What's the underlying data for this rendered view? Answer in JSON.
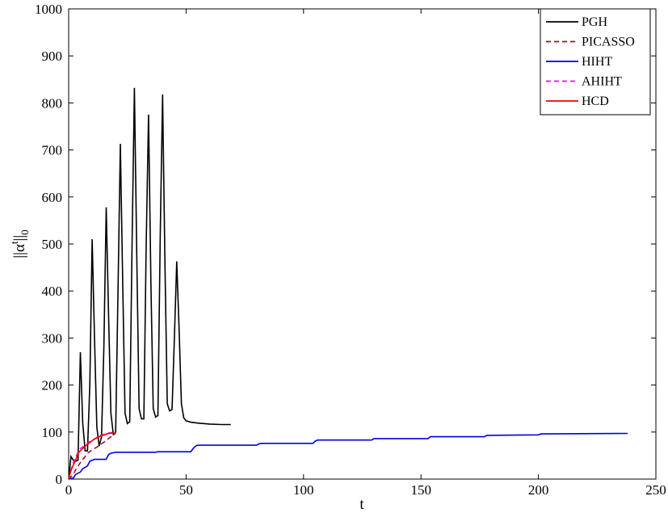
{
  "chart_data": {
    "type": "line",
    "xlabel": "t",
    "ylabel": "||α^t||_0",
    "ylabel_parts": {
      "main": "||α",
      "sup": "t",
      "bars": "||",
      "sub": "0"
    },
    "xlim": [
      0,
      250
    ],
    "ylim": [
      0,
      1000
    ],
    "xticks": [
      "0",
      "50",
      "100",
      "150",
      "200",
      "250"
    ],
    "yticks": [
      "0",
      "100",
      "200",
      "300",
      "400",
      "500",
      "600",
      "700",
      "800",
      "900",
      "1000"
    ],
    "grid": false,
    "legend_position": "top-right",
    "series": [
      {
        "name": "PGH",
        "color": "#000000",
        "dash": "solid",
        "points": [
          [
            0,
            0
          ],
          [
            1,
            48
          ],
          [
            2,
            40
          ],
          [
            3,
            38
          ],
          [
            4,
            40
          ],
          [
            5,
            270
          ],
          [
            6,
            120
          ],
          [
            7,
            60
          ],
          [
            8,
            60
          ],
          [
            9,
            200
          ],
          [
            10,
            510
          ],
          [
            11,
            300
          ],
          [
            12,
            110
          ],
          [
            13,
            70
          ],
          [
            14,
            90
          ],
          [
            15,
            280
          ],
          [
            16,
            578
          ],
          [
            17,
            350
          ],
          [
            18,
            140
          ],
          [
            19,
            95
          ],
          [
            20,
            100
          ],
          [
            21,
            400
          ],
          [
            22,
            713
          ],
          [
            23,
            420
          ],
          [
            24,
            140
          ],
          [
            25,
            118
          ],
          [
            26,
            122
          ],
          [
            27,
            500
          ],
          [
            28,
            832
          ],
          [
            29,
            480
          ],
          [
            30,
            150
          ],
          [
            31,
            128
          ],
          [
            32,
            128
          ],
          [
            33,
            500
          ],
          [
            34,
            775
          ],
          [
            35,
            420
          ],
          [
            36,
            150
          ],
          [
            37,
            132
          ],
          [
            38,
            135
          ],
          [
            39,
            520
          ],
          [
            40,
            818
          ],
          [
            41,
            460
          ],
          [
            42,
            160
          ],
          [
            43,
            145
          ],
          [
            44,
            148
          ],
          [
            45,
            300
          ],
          [
            46,
            463
          ],
          [
            47,
            320
          ],
          [
            48,
            160
          ],
          [
            49,
            130
          ],
          [
            50,
            124
          ],
          [
            52,
            121
          ],
          [
            55,
            119
          ],
          [
            60,
            117
          ],
          [
            65,
            116
          ],
          [
            69,
            116
          ]
        ]
      },
      {
        "name": "PICASSO",
        "color": "#a01020",
        "dash": "dashed",
        "points": [
          [
            0,
            0
          ],
          [
            2,
            10
          ],
          [
            3,
            20
          ],
          [
            5,
            35
          ],
          [
            7,
            48
          ],
          [
            8,
            55
          ],
          [
            10,
            62
          ],
          [
            12,
            68
          ],
          [
            14,
            75
          ],
          [
            16,
            82
          ],
          [
            18,
            90
          ],
          [
            20,
            97
          ]
        ]
      },
      {
        "name": "HIHT",
        "color": "#0000e0",
        "dash": "solid",
        "points": [
          [
            0,
            0
          ],
          [
            2,
            2
          ],
          [
            3,
            10
          ],
          [
            5,
            15
          ],
          [
            6,
            22
          ],
          [
            8,
            28
          ],
          [
            9,
            38
          ],
          [
            10,
            40
          ],
          [
            11,
            42
          ],
          [
            16,
            42
          ],
          [
            17,
            52
          ],
          [
            18,
            55
          ],
          [
            19,
            56
          ],
          [
            20,
            57
          ],
          [
            37,
            57
          ],
          [
            38,
            58
          ],
          [
            52,
            58
          ],
          [
            53,
            65
          ],
          [
            54,
            70
          ],
          [
            55,
            72
          ],
          [
            80,
            72
          ],
          [
            81,
            75
          ],
          [
            82,
            76
          ],
          [
            104,
            76
          ],
          [
            105,
            81
          ],
          [
            106,
            83
          ],
          [
            129,
            83
          ],
          [
            130,
            86
          ],
          [
            153,
            86
          ],
          [
            154,
            90
          ],
          [
            177,
            90
          ],
          [
            178,
            93
          ],
          [
            200,
            94
          ],
          [
            201,
            96
          ],
          [
            238,
            97
          ]
        ]
      },
      {
        "name": "AHIHT",
        "color": "#ff00ff",
        "dash": "dashed",
        "points": [
          [
            0,
            0
          ],
          [
            1,
            20
          ],
          [
            2,
            35
          ],
          [
            3,
            45
          ],
          [
            4,
            58
          ],
          [
            5,
            65
          ],
          [
            7,
            72
          ],
          [
            9,
            80
          ],
          [
            11,
            85
          ],
          [
            13,
            92
          ],
          [
            15,
            95
          ],
          [
            17,
            98
          ],
          [
            20,
            100
          ]
        ]
      },
      {
        "name": "HCD",
        "color": "#ee0000",
        "dash": "solid",
        "points": [
          [
            0,
            0
          ],
          [
            1,
            18
          ],
          [
            2,
            30
          ],
          [
            3,
            40
          ],
          [
            4,
            55
          ],
          [
            5,
            60
          ],
          [
            7,
            70
          ],
          [
            9,
            78
          ],
          [
            11,
            85
          ],
          [
            13,
            90
          ],
          [
            15,
            94
          ],
          [
            17,
            97
          ],
          [
            20,
            98
          ]
        ]
      }
    ]
  }
}
